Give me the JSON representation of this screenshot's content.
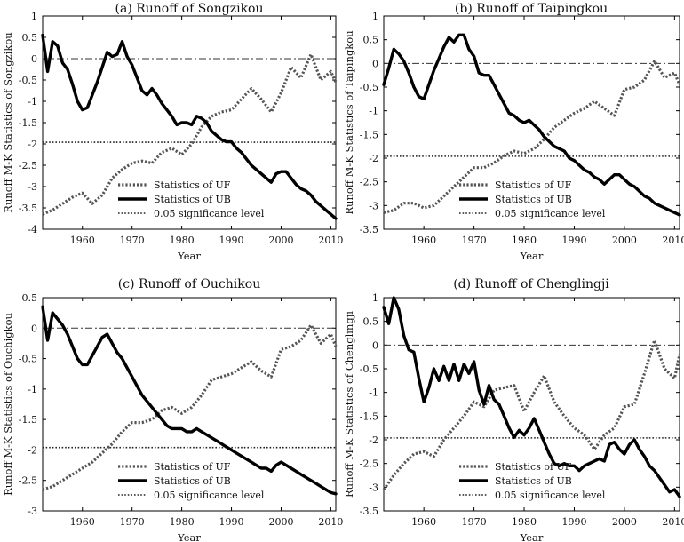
{
  "chart_data": [
    {
      "type": "line",
      "title": "(a) Runoff of Songzikou",
      "xlabel": "Year",
      "ylabel": "Runoff M-K Statistics of Songzikou",
      "xlim": [
        1952,
        2011
      ],
      "ylim": [
        -4,
        1
      ],
      "xticks": [
        1960,
        1970,
        1980,
        1990,
        2000,
        2010
      ],
      "yticks": [
        1,
        0.5,
        0,
        -0.5,
        -1,
        -1.5,
        -2,
        -2.5,
        -3,
        -3.5,
        -4
      ],
      "ytick_labels": [
        "1",
        "0.5",
        "0",
        "-0.5",
        "-1",
        "-1.5",
        "-2",
        "-2.5",
        "-3",
        "-3.5",
        "-4"
      ],
      "significance_level": -1.96,
      "legend": [
        "Statistics of UF",
        "Statistics of  UB",
        "0.05 significance level"
      ],
      "series": [
        {
          "name": "UF",
          "style": "dotted-thick",
          "x": [
            1952,
            1954,
            1956,
            1958,
            1960,
            1962,
            1964,
            1966,
            1968,
            1970,
            1972,
            1974,
            1976,
            1978,
            1980,
            1982,
            1984,
            1986,
            1988,
            1990,
            1992,
            1994,
            1996,
            1998,
            2000,
            2002,
            2004,
            2006,
            2008,
            2010,
            2011
          ],
          "values": [
            -3.65,
            -3.55,
            -3.4,
            -3.25,
            -3.15,
            -3.4,
            -3.2,
            -2.8,
            -2.6,
            -2.45,
            -2.4,
            -2.45,
            -2.2,
            -2.1,
            -2.25,
            -2.0,
            -1.6,
            -1.35,
            -1.25,
            -1.2,
            -0.95,
            -0.7,
            -0.95,
            -1.25,
            -0.8,
            -0.2,
            -0.45,
            0.1,
            -0.5,
            -0.3,
            -0.55
          ]
        },
        {
          "name": "UB",
          "style": "solid-thick",
          "x": [
            1952,
            1953,
            1954,
            1955,
            1956,
            1957,
            1958,
            1959,
            1960,
            1961,
            1962,
            1963,
            1964,
            1965,
            1966,
            1967,
            1968,
            1969,
            1970,
            1971,
            1972,
            1973,
            1974,
            1975,
            1976,
            1977,
            1978,
            1979,
            1980,
            1981,
            1982,
            1983,
            1984,
            1985,
            1986,
            1987,
            1988,
            1989,
            1990,
            1991,
            1992,
            1993,
            1994,
            1995,
            1996,
            1997,
            1998,
            1999,
            2000,
            2001,
            2002,
            2003,
            2004,
            2005,
            2006,
            2007,
            2008,
            2009,
            2010,
            2011
          ],
          "values": [
            0.55,
            -0.3,
            0.4,
            0.3,
            -0.1,
            -0.25,
            -0.6,
            -1.0,
            -1.2,
            -1.15,
            -0.85,
            -0.55,
            -0.2,
            0.15,
            0.05,
            0.1,
            0.4,
            0.05,
            -0.15,
            -0.45,
            -0.75,
            -0.85,
            -0.7,
            -0.85,
            -1.05,
            -1.2,
            -1.35,
            -1.55,
            -1.5,
            -1.5,
            -1.55,
            -1.35,
            -1.4,
            -1.5,
            -1.7,
            -1.8,
            -1.9,
            -1.95,
            -1.95,
            -2.1,
            -2.2,
            -2.35,
            -2.5,
            -2.6,
            -2.7,
            -2.8,
            -2.9,
            -2.7,
            -2.65,
            -2.65,
            -2.8,
            -2.95,
            -3.05,
            -3.1,
            -3.2,
            -3.35,
            -3.45,
            -3.55,
            -3.65,
            -3.75
          ]
        }
      ]
    },
    {
      "type": "line",
      "title": "(b) Runoff of Taipingkou",
      "xlabel": "Year",
      "ylabel": "Runoff M-K Statistics of Taipingkou",
      "xlim": [
        1952,
        2011
      ],
      "ylim": [
        -3.5,
        1
      ],
      "xticks": [
        1960,
        1970,
        1980,
        1990,
        2000,
        2010
      ],
      "yticks": [
        1,
        0.5,
        0,
        -0.5,
        -1,
        -1.5,
        -2,
        -2.5,
        -3,
        -3.5
      ],
      "ytick_labels": [
        "1",
        "0.5",
        "0",
        "-0.5",
        "-1",
        "-1.5",
        "-2",
        "-2.5",
        "-3",
        "-3.5"
      ],
      "significance_level": -1.96,
      "legend": [
        "Statistics of UF",
        "Statistics of  UB",
        "0.05 significance level"
      ],
      "series": [
        {
          "name": "UF",
          "style": "dotted-thick",
          "x": [
            1952,
            1954,
            1956,
            1958,
            1960,
            1962,
            1964,
            1966,
            1968,
            1970,
            1972,
            1974,
            1976,
            1978,
            1980,
            1982,
            1984,
            1986,
            1988,
            1990,
            1992,
            1994,
            1996,
            1998,
            2000,
            2002,
            2004,
            2006,
            2008,
            2010,
            2011
          ],
          "values": [
            -3.15,
            -3.1,
            -2.95,
            -2.95,
            -3.05,
            -3.0,
            -2.8,
            -2.6,
            -2.4,
            -2.2,
            -2.2,
            -2.1,
            -1.95,
            -1.85,
            -1.9,
            -1.8,
            -1.6,
            -1.35,
            -1.2,
            -1.05,
            -0.95,
            -0.8,
            -0.95,
            -1.1,
            -0.55,
            -0.5,
            -0.35,
            0.05,
            -0.3,
            -0.2,
            -0.45
          ]
        },
        {
          "name": "UB",
          "style": "solid-thick",
          "x": [
            1952,
            1953,
            1954,
            1955,
            1956,
            1957,
            1958,
            1959,
            1960,
            1961,
            1962,
            1963,
            1964,
            1965,
            1966,
            1967,
            1968,
            1969,
            1970,
            1971,
            1972,
            1973,
            1974,
            1975,
            1976,
            1977,
            1978,
            1979,
            1980,
            1981,
            1982,
            1983,
            1984,
            1985,
            1986,
            1987,
            1988,
            1989,
            1990,
            1991,
            1992,
            1993,
            1994,
            1995,
            1996,
            1997,
            1998,
            1999,
            2000,
            2001,
            2002,
            2003,
            2004,
            2005,
            2006,
            2007,
            2008,
            2009,
            2010,
            2011
          ],
          "values": [
            -0.45,
            -0.1,
            0.3,
            0.2,
            0.05,
            -0.2,
            -0.5,
            -0.7,
            -0.75,
            -0.45,
            -0.15,
            0.1,
            0.35,
            0.55,
            0.45,
            0.6,
            0.6,
            0.3,
            0.15,
            -0.2,
            -0.25,
            -0.25,
            -0.45,
            -0.65,
            -0.85,
            -1.05,
            -1.1,
            -1.2,
            -1.25,
            -1.2,
            -1.3,
            -1.4,
            -1.55,
            -1.65,
            -1.75,
            -1.8,
            -1.85,
            -2.0,
            -2.05,
            -2.15,
            -2.25,
            -2.3,
            -2.4,
            -2.45,
            -2.55,
            -2.45,
            -2.35,
            -2.35,
            -2.45,
            -2.55,
            -2.6,
            -2.7,
            -2.8,
            -2.85,
            -2.95,
            -3.0,
            -3.05,
            -3.1,
            -3.15,
            -3.2
          ]
        }
      ]
    },
    {
      "type": "line",
      "title": "(c) Runoff of Ouchikou",
      "xlabel": "Year",
      "ylabel": "Runoff M-K Statistics of Ouchigkou",
      "xlim": [
        1952,
        2011
      ],
      "ylim": [
        -3,
        0.5
      ],
      "xticks": [
        1960,
        1970,
        1980,
        1990,
        2000,
        2010
      ],
      "yticks": [
        0.5,
        0,
        -0.5,
        -1,
        -1.5,
        -2,
        -2.5,
        -3
      ],
      "ytick_labels": [
        "0.5",
        "0",
        "-0.5",
        "-1",
        "-1.5",
        "-2",
        "-2.5",
        "-3"
      ],
      "significance_level": -1.96,
      "legend": [
        "Statistics of UF",
        "Statistics of  UB",
        "0.05 significance level"
      ],
      "series": [
        {
          "name": "UF",
          "style": "dotted-thick",
          "x": [
            1952,
            1954,
            1956,
            1958,
            1960,
            1962,
            1964,
            1966,
            1968,
            1970,
            1972,
            1974,
            1976,
            1978,
            1980,
            1982,
            1984,
            1986,
            1988,
            1990,
            1992,
            1994,
            1996,
            1998,
            2000,
            2002,
            2004,
            2006,
            2008,
            2010,
            2011
          ],
          "values": [
            -2.65,
            -2.6,
            -2.5,
            -2.4,
            -2.3,
            -2.2,
            -2.05,
            -1.9,
            -1.7,
            -1.55,
            -1.55,
            -1.5,
            -1.35,
            -1.3,
            -1.4,
            -1.3,
            -1.1,
            -0.85,
            -0.8,
            -0.75,
            -0.65,
            -0.55,
            -0.7,
            -0.8,
            -0.35,
            -0.3,
            -0.2,
            0.05,
            -0.25,
            -0.1,
            -0.3
          ]
        },
        {
          "name": "UB",
          "style": "solid-thick",
          "x": [
            1952,
            1953,
            1954,
            1955,
            1956,
            1957,
            1958,
            1959,
            1960,
            1961,
            1962,
            1963,
            1964,
            1965,
            1966,
            1967,
            1968,
            1969,
            1970,
            1971,
            1972,
            1973,
            1974,
            1975,
            1976,
            1977,
            1978,
            1979,
            1980,
            1981,
            1982,
            1983,
            1984,
            1985,
            1986,
            1987,
            1988,
            1989,
            1990,
            1991,
            1992,
            1993,
            1994,
            1995,
            1996,
            1997,
            1998,
            1999,
            2000,
            2001,
            2002,
            2003,
            2004,
            2005,
            2006,
            2007,
            2008,
            2009,
            2010,
            2011
          ],
          "values": [
            0.35,
            -0.2,
            0.25,
            0.15,
            0.05,
            -0.1,
            -0.3,
            -0.5,
            -0.6,
            -0.6,
            -0.45,
            -0.3,
            -0.15,
            -0.1,
            -0.25,
            -0.4,
            -0.5,
            -0.65,
            -0.8,
            -0.95,
            -1.1,
            -1.2,
            -1.3,
            -1.4,
            -1.5,
            -1.6,
            -1.65,
            -1.65,
            -1.65,
            -1.7,
            -1.7,
            -1.65,
            -1.7,
            -1.75,
            -1.8,
            -1.85,
            -1.9,
            -1.95,
            -2.0,
            -2.05,
            -2.1,
            -2.15,
            -2.2,
            -2.25,
            -2.3,
            -2.3,
            -2.35,
            -2.25,
            -2.2,
            -2.25,
            -2.3,
            -2.35,
            -2.4,
            -2.45,
            -2.5,
            -2.55,
            -2.6,
            -2.65,
            -2.7,
            -2.72
          ]
        }
      ]
    },
    {
      "type": "line",
      "title": "(d) Runoff of Chenglingji",
      "xlabel": "Year",
      "ylabel": "Runoff M-K Statistics of Chenglingji",
      "xlim": [
        1952,
        2011
      ],
      "ylim": [
        -3.5,
        1
      ],
      "xticks": [
        1960,
        1970,
        1980,
        1990,
        2000,
        2010
      ],
      "yticks": [
        1,
        0.5,
        0,
        -0.5,
        -1,
        -1.5,
        -2,
        -2.5,
        -3,
        -3.5
      ],
      "ytick_labels": [
        "1",
        "0.5",
        "0",
        "-0.5",
        "-1",
        "-1.5",
        "-2",
        "-2.5",
        "-3",
        "-3.5"
      ],
      "significance_level": -1.96,
      "legend": [
        "Statistics of UF",
        "Statistics of  UB",
        "0.05 significance level"
      ],
      "series": [
        {
          "name": "UF",
          "style": "dotted-thick",
          "x": [
            1952,
            1954,
            1956,
            1958,
            1960,
            1962,
            1964,
            1966,
            1968,
            1970,
            1972,
            1974,
            1976,
            1978,
            1980,
            1982,
            1984,
            1986,
            1988,
            1990,
            1992,
            1994,
            1996,
            1998,
            2000,
            2002,
            2004,
            2006,
            2008,
            2010,
            2011
          ],
          "values": [
            -3.05,
            -2.75,
            -2.5,
            -2.3,
            -2.25,
            -2.35,
            -2.0,
            -1.75,
            -1.5,
            -1.2,
            -1.3,
            -0.95,
            -0.9,
            -0.85,
            -1.4,
            -1.0,
            -0.65,
            -1.2,
            -1.5,
            -1.75,
            -1.9,
            -2.2,
            -1.9,
            -1.75,
            -1.3,
            -1.25,
            -0.6,
            0.1,
            -0.5,
            -0.7,
            -0.2
          ]
        },
        {
          "name": "UB",
          "style": "solid-thick",
          "x": [
            1952,
            1953,
            1954,
            1955,
            1956,
            1957,
            1958,
            1959,
            1960,
            1961,
            1962,
            1963,
            1964,
            1965,
            1966,
            1967,
            1968,
            1969,
            1970,
            1971,
            1972,
            1973,
            1974,
            1975,
            1976,
            1977,
            1978,
            1979,
            1980,
            1981,
            1982,
            1983,
            1984,
            1985,
            1986,
            1987,
            1988,
            1989,
            1990,
            1991,
            1992,
            1993,
            1994,
            1995,
            1996,
            1997,
            1998,
            1999,
            2000,
            2001,
            2002,
            2003,
            2004,
            2005,
            2006,
            2007,
            2008,
            2009,
            2010,
            2011
          ],
          "values": [
            0.8,
            0.45,
            1.0,
            0.75,
            0.2,
            -0.1,
            -0.15,
            -0.7,
            -1.2,
            -0.9,
            -0.5,
            -0.75,
            -0.45,
            -0.75,
            -0.4,
            -0.75,
            -0.4,
            -0.6,
            -0.35,
            -0.95,
            -1.25,
            -0.85,
            -1.15,
            -1.25,
            -1.5,
            -1.75,
            -1.95,
            -1.8,
            -1.9,
            -1.75,
            -1.55,
            -1.8,
            -2.05,
            -2.3,
            -2.5,
            -2.55,
            -2.5,
            -2.55,
            -2.55,
            -2.65,
            -2.55,
            -2.5,
            -2.45,
            -2.4,
            -2.45,
            -2.1,
            -2.05,
            -2.2,
            -2.3,
            -2.1,
            -2.0,
            -2.2,
            -2.35,
            -2.55,
            -2.65,
            -2.8,
            -2.95,
            -3.1,
            -3.05,
            -3.2
          ]
        }
      ]
    }
  ]
}
